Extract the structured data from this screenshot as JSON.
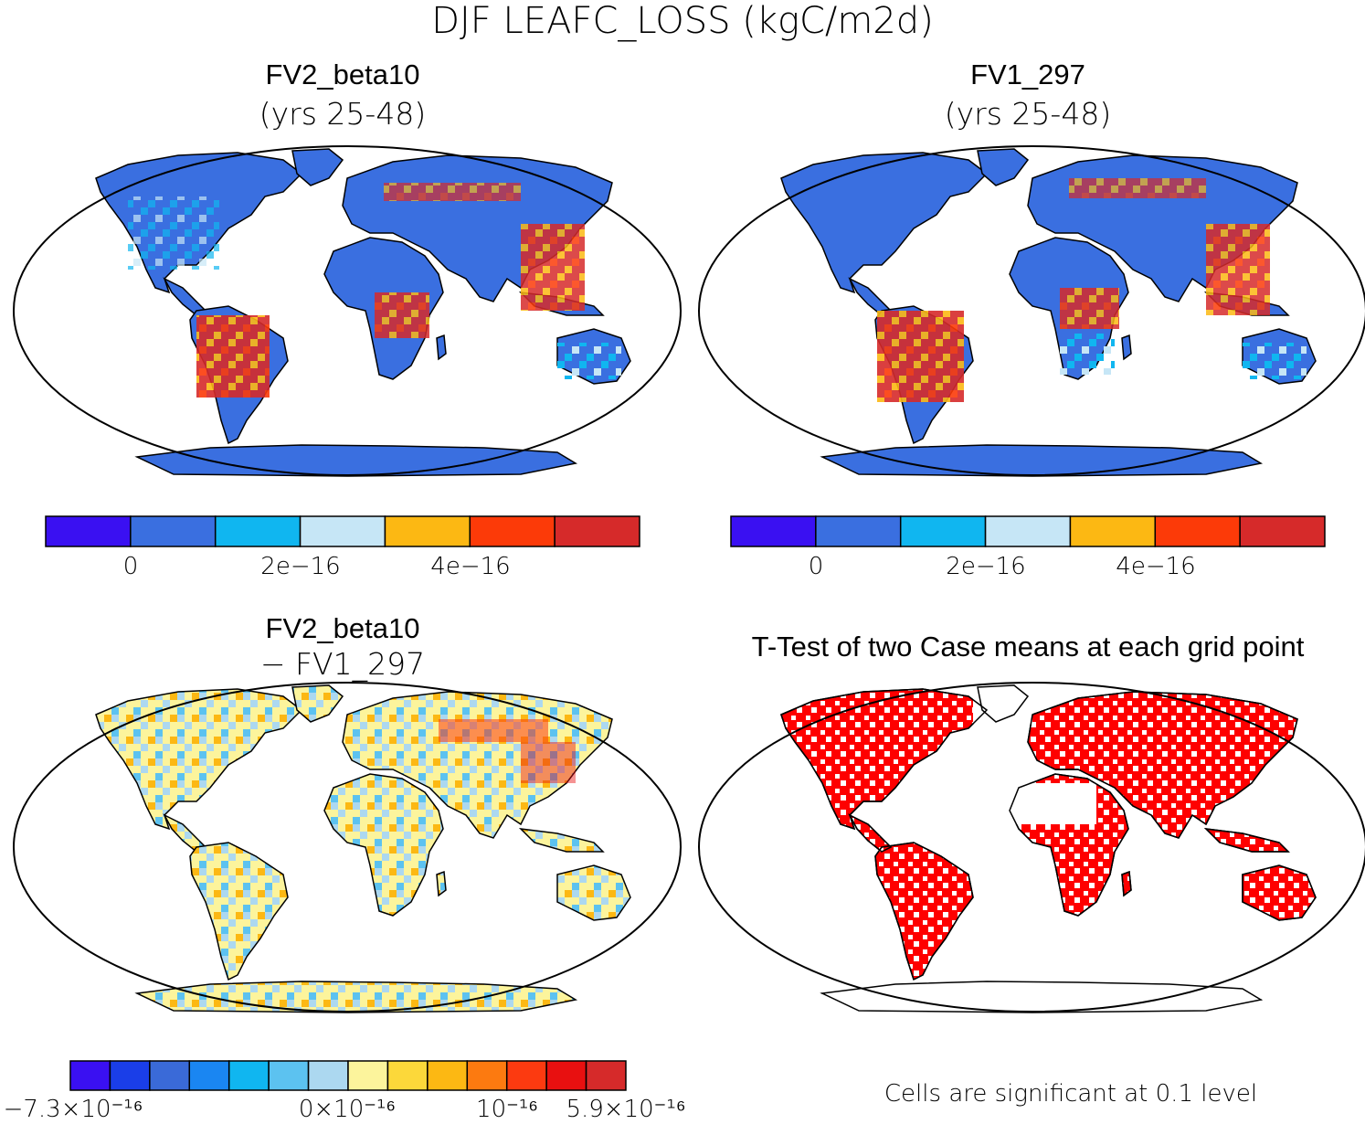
{
  "title": "DJF LEAFC_LOSS (kgC/m2d)",
  "panels": {
    "top_left": {
      "title": "FV2_beta10",
      "subtitle": "(yrs 25-48)"
    },
    "top_right": {
      "title": "FV1_297",
      "subtitle": "(yrs 25-48)"
    },
    "bottom_left": {
      "title": "FV2_beta10",
      "subtitle": "− FV1_297"
    },
    "bottom_right": {
      "title": "T-Test of two Case means at each grid point",
      "note": "Cells are significant at 0.1 level"
    }
  },
  "chart_data": [
    {
      "type": "heatmap",
      "title": "FV2_beta10 (yrs 25-48)",
      "colorbar": {
        "colors": [
          "#3a10f2",
          "#3a6fe0",
          "#10b6f0",
          "#c6e6f6",
          "#fcb813",
          "#fc3a08",
          "#d62a2a"
        ],
        "tick_labels": [
          "0",
          "2e−16",
          "4e−16"
        ],
        "tick_values": [
          0,
          2e-16,
          4e-16
        ]
      }
    },
    {
      "type": "heatmap",
      "title": "FV1_297 (yrs 25-48)",
      "colorbar": {
        "colors": [
          "#3a10f2",
          "#3a6fe0",
          "#10b6f0",
          "#c6e6f6",
          "#fcb813",
          "#fc3a08",
          "#d62a2a"
        ],
        "tick_labels": [
          "0",
          "2e−16",
          "4e−16"
        ],
        "tick_values": [
          0,
          2e-16,
          4e-16
        ]
      }
    },
    {
      "type": "heatmap",
      "title": "FV2_beta10 − FV1_297",
      "colorbar": {
        "colors": [
          "#3a10f2",
          "#1a3ee8",
          "#3a6ad8",
          "#1a86f2",
          "#10b6f0",
          "#5cc2f0",
          "#acd8f0",
          "#fcf49c",
          "#fcd83a",
          "#fcb813",
          "#fc7a10",
          "#fc3a10",
          "#e81010",
          "#d62a2a"
        ],
        "tick_labels": [
          "−7.3×10⁻¹⁶",
          "0×10⁻¹⁶",
          "10⁻¹⁶",
          "5.9×10⁻¹⁶"
        ],
        "tick_values": [
          -7.3e-16,
          0,
          1e-16,
          5.9e-16
        ]
      }
    },
    {
      "type": "heatmap",
      "title": "T-Test of two Case means at each grid point",
      "significance_level": 0.1,
      "colorbar": {
        "colors": [
          "#fe0000"
        ],
        "tick_labels": []
      }
    }
  ]
}
